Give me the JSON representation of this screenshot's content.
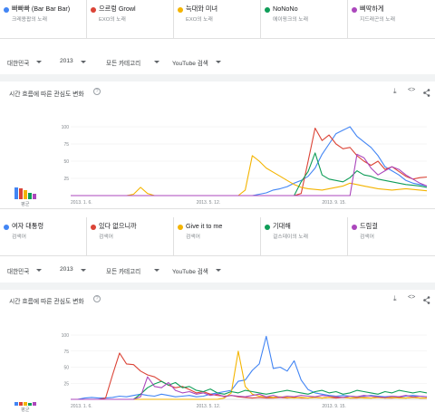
{
  "colors": {
    "blue": "#4285f4",
    "red": "#db4437",
    "yellow": "#f4b400",
    "green": "#0f9d58",
    "purple": "#ab47bc"
  },
  "set1": {
    "terms": [
      {
        "title": "빠빠빠 (Bar Bar Bar)",
        "sub": "크레용팝의 노래",
        "color": "#4285f4"
      },
      {
        "title": "으르렁 Growl",
        "sub": "EXO의 노래",
        "color": "#db4437"
      },
      {
        "title": "늑대와 미녀",
        "sub": "EXO의 노래",
        "color": "#f4b400"
      },
      {
        "title": "NoNoNo",
        "sub": "에이핑크의 노래",
        "color": "#0f9d58"
      },
      {
        "title": "삐딱하게",
        "sub": "지드래곤의 노래",
        "color": "#ab47bc"
      }
    ],
    "filters": [
      "대한민국",
      "2013",
      "모든 카테고리",
      "YouTube 검색"
    ],
    "card_title": "시간 흐름에 따른 관심도 변화",
    "avg_label": "평균",
    "avg_values": [
      38,
      36,
      30,
      20,
      18
    ],
    "help_icon": "?",
    "tools": {
      "download": "⤓",
      "embed": "<>",
      "share": "share-icon"
    }
  },
  "set2": {
    "terms": [
      {
        "title": "여자 대통령",
        "sub": "검색어",
        "color": "#4285f4"
      },
      {
        "title": "있다 없으니까",
        "sub": "검색어",
        "color": "#db4437"
      },
      {
        "title": "Give it to me",
        "sub": "검색어",
        "color": "#f4b400"
      },
      {
        "title": "기대해",
        "sub": "걸스데이의 노래",
        "color": "#0f9d58"
      },
      {
        "title": "드림걸",
        "sub": "검색어",
        "color": "#ab47bc"
      }
    ],
    "filters": [
      "대한민국",
      "2013",
      "모든 카테고리",
      "YouTube 검색"
    ],
    "card_title": "시간 흐름에 따른 관심도 변화",
    "avg_label": "평균",
    "avg_values": [
      14,
      14,
      14,
      12,
      13
    ],
    "help_icon": "?",
    "tools": {
      "download": "⤓",
      "embed": "<>",
      "share": "share-icon"
    }
  },
  "chart_data": [
    {
      "type": "line",
      "x_ticks": [
        "2013. 1. 6.",
        "2013. 5. 12.",
        "2013. 9. 15."
      ],
      "y_ticks": [
        25,
        50,
        75,
        100
      ],
      "ylim": [
        0,
        100
      ],
      "weeks": 52,
      "series": [
        {
          "name": "빠빠빠 (Bar Bar Bar)",
          "color": "#4285f4",
          "values": [
            0,
            0,
            0,
            0,
            0,
            0,
            0,
            0,
            0,
            0,
            0,
            0,
            0,
            0,
            0,
            0,
            0,
            0,
            0,
            0,
            0,
            0,
            0,
            0,
            0,
            0,
            0,
            2,
            4,
            8,
            10,
            13,
            18,
            22,
            28,
            40,
            60,
            75,
            90,
            95,
            100,
            86,
            78,
            70,
            58,
            42,
            36,
            30,
            22,
            18,
            16,
            14
          ]
        },
        {
          "name": "으르렁 Growl",
          "color": "#db4437",
          "values": [
            0,
            0,
            0,
            0,
            0,
            0,
            0,
            0,
            0,
            0,
            0,
            0,
            0,
            0,
            0,
            0,
            0,
            0,
            0,
            0,
            0,
            0,
            0,
            0,
            0,
            0,
            0,
            0,
            0,
            0,
            0,
            0,
            0,
            3,
            50,
            98,
            80,
            88,
            75,
            68,
            70,
            58,
            50,
            44,
            50,
            38,
            42,
            35,
            28,
            24,
            26,
            27
          ]
        },
        {
          "name": "늑대와 미녀",
          "color": "#f4b400",
          "values": [
            0,
            0,
            0,
            0,
            0,
            0,
            0,
            0,
            0,
            2,
            12,
            3,
            0,
            0,
            0,
            0,
            0,
            0,
            0,
            0,
            0,
            0,
            0,
            0,
            0,
            8,
            58,
            50,
            40,
            34,
            28,
            22,
            16,
            12,
            10,
            9,
            8,
            10,
            12,
            14,
            18,
            16,
            14,
            12,
            10,
            9,
            8,
            9,
            10,
            9,
            8,
            7
          ]
        },
        {
          "name": "NoNoNo",
          "color": "#0f9d58",
          "values": [
            0,
            0,
            0,
            0,
            0,
            0,
            0,
            0,
            0,
            0,
            0,
            0,
            0,
            0,
            0,
            0,
            0,
            0,
            0,
            0,
            0,
            0,
            0,
            0,
            0,
            0,
            0,
            0,
            0,
            0,
            0,
            0,
            0,
            20,
            35,
            62,
            30,
            24,
            22,
            20,
            26,
            36,
            30,
            28,
            24,
            22,
            20,
            18,
            16,
            15,
            14,
            12
          ]
        },
        {
          "name": "삐딱하게",
          "color": "#ab47bc",
          "values": [
            0,
            0,
            0,
            0,
            0,
            0,
            0,
            0,
            0,
            0,
            0,
            0,
            0,
            0,
            0,
            0,
            0,
            0,
            0,
            0,
            0,
            0,
            0,
            0,
            0,
            0,
            0,
            0,
            0,
            0,
            0,
            0,
            0,
            0,
            0,
            0,
            0,
            0,
            0,
            0,
            0,
            60,
            55,
            40,
            30,
            36,
            42,
            38,
            30,
            24,
            18,
            14
          ]
        }
      ]
    },
    {
      "type": "line",
      "x_ticks": [
        "2013. 1. 6.",
        "2013. 5. 12.",
        "2013. 9. 15."
      ],
      "y_ticks": [
        25,
        50,
        75,
        100
      ],
      "ylim": [
        0,
        100
      ],
      "weeks": 52,
      "series": [
        {
          "name": "여자 대통령",
          "color": "#4285f4",
          "values": [
            0,
            0,
            2,
            3,
            2,
            2,
            3,
            5,
            4,
            6,
            8,
            6,
            5,
            8,
            6,
            4,
            5,
            6,
            4,
            5,
            8,
            10,
            12,
            14,
            28,
            30,
            45,
            55,
            98,
            48,
            50,
            44,
            60,
            30,
            15,
            10,
            8,
            6,
            5,
            6,
            5,
            4,
            5,
            6,
            5,
            4,
            5,
            4,
            5,
            6,
            5,
            4
          ]
        },
        {
          "name": "있다 없으니까",
          "color": "#db4437",
          "values": [
            0,
            0,
            0,
            0,
            0,
            2,
            38,
            72,
            55,
            54,
            44,
            38,
            35,
            28,
            22,
            18,
            20,
            15,
            10,
            12,
            8,
            6,
            5,
            6,
            4,
            3,
            2,
            3,
            2,
            2,
            3,
            2,
            3,
            2,
            2,
            3,
            2,
            3,
            2,
            3,
            2,
            2,
            3,
            2,
            3,
            2,
            2,
            3,
            2,
            3,
            2,
            2
          ]
        },
        {
          "name": "Give it to me",
          "color": "#f4b400",
          "values": [
            0,
            0,
            0,
            0,
            0,
            0,
            0,
            0,
            0,
            0,
            0,
            0,
            0,
            0,
            0,
            0,
            0,
            0,
            0,
            0,
            0,
            0,
            2,
            10,
            75,
            20,
            8,
            5,
            4,
            3,
            4,
            3,
            2,
            3,
            2,
            3,
            2,
            3,
            4,
            3,
            2,
            3,
            2,
            2,
            3,
            2,
            3,
            2,
            2,
            3,
            2,
            2
          ]
        },
        {
          "name": "기대해",
          "color": "#0f9d58",
          "values": [
            0,
            0,
            0,
            0,
            0,
            0,
            0,
            0,
            0,
            0,
            8,
            18,
            24,
            28,
            22,
            26,
            18,
            20,
            14,
            12,
            16,
            10,
            8,
            12,
            10,
            14,
            12,
            10,
            8,
            10,
            12,
            14,
            12,
            10,
            8,
            12,
            14,
            10,
            12,
            8,
            10,
            14,
            12,
            10,
            8,
            12,
            10,
            14,
            12,
            10,
            12,
            10
          ]
        },
        {
          "name": "드림걸",
          "color": "#ab47bc",
          "values": [
            0,
            0,
            0,
            0,
            0,
            0,
            0,
            0,
            0,
            0,
            4,
            35,
            20,
            18,
            26,
            14,
            10,
            12,
            8,
            10,
            6,
            8,
            4,
            6,
            5,
            4,
            6,
            8,
            4,
            6,
            3,
            5,
            4,
            6,
            5,
            4,
            6,
            5,
            4,
            3,
            5,
            4,
            6,
            5,
            4,
            3,
            5,
            4,
            6,
            4,
            5,
            4
          ]
        }
      ]
    }
  ]
}
